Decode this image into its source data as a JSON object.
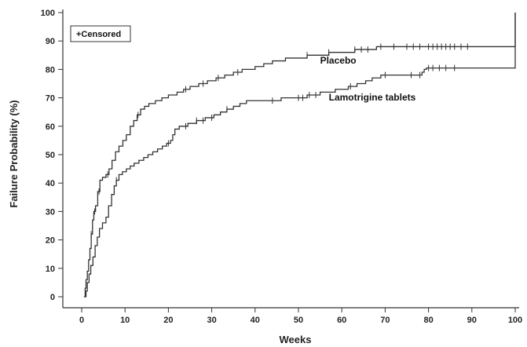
{
  "chart_data": {
    "type": "line",
    "subtype": "step (Kaplan-Meier)",
    "xlabel": "Weeks",
    "ylabel": "Failure Probability (%)",
    "xlim": [
      0,
      100
    ],
    "ylim": [
      0,
      100
    ],
    "x_ticks": [
      0,
      10,
      20,
      30,
      40,
      50,
      60,
      70,
      80,
      90,
      100
    ],
    "y_ticks": [
      0,
      10,
      20,
      30,
      40,
      50,
      60,
      70,
      80,
      90,
      100
    ],
    "grid": false,
    "legend": {
      "position": "top-left",
      "entries": [
        "+Censored"
      ]
    },
    "series": [
      {
        "name": "Placebo",
        "color": "#333333",
        "points": [
          [
            0.5,
            0
          ],
          [
            0.8,
            3
          ],
          [
            1.0,
            6
          ],
          [
            1.3,
            9
          ],
          [
            1.6,
            13
          ],
          [
            1.9,
            17
          ],
          [
            2.2,
            22
          ],
          [
            2.5,
            27
          ],
          [
            2.8,
            30
          ],
          [
            3.2,
            32
          ],
          [
            3.7,
            37
          ],
          [
            4.2,
            41
          ],
          [
            4.8,
            42
          ],
          [
            5.6,
            43
          ],
          [
            6.3,
            45
          ],
          [
            7.0,
            48
          ],
          [
            7.8,
            51
          ],
          [
            8.6,
            53
          ],
          [
            9.5,
            55
          ],
          [
            10.3,
            57
          ],
          [
            11.2,
            60
          ],
          [
            12.0,
            62
          ],
          [
            12.8,
            64
          ],
          [
            13.6,
            66
          ],
          [
            14.5,
            67
          ],
          [
            15.5,
            68
          ],
          [
            17.0,
            69
          ],
          [
            18.5,
            70
          ],
          [
            20.0,
            71
          ],
          [
            22.0,
            72
          ],
          [
            23.5,
            73
          ],
          [
            25.0,
            74
          ],
          [
            27.0,
            75
          ],
          [
            29.0,
            76
          ],
          [
            31.0,
            77
          ],
          [
            33.0,
            78
          ],
          [
            35.0,
            79
          ],
          [
            37.0,
            80
          ],
          [
            40.0,
            81
          ],
          [
            42.0,
            82
          ],
          [
            44.0,
            83
          ],
          [
            47.0,
            84
          ],
          [
            52.0,
            85
          ],
          [
            57.0,
            86
          ],
          [
            63.0,
            87
          ],
          [
            68.0,
            88
          ],
          [
            90.0,
            88
          ],
          [
            100.0,
            100
          ]
        ],
        "censored": [
          2.2,
          3.0,
          4.0,
          6.0,
          13.0,
          24.0,
          28.0,
          31.5,
          36.0,
          52.0,
          57.0,
          63.0,
          64.5,
          66.0,
          69.0,
          72.0,
          75.0,
          76.5,
          78.0,
          80.0,
          81.0,
          82.0,
          83.0,
          84.0,
          85.0,
          86.0,
          87.5,
          89.0
        ]
      },
      {
        "name": "Lamotrigine tablets",
        "color": "#333333",
        "points": [
          [
            0.7,
            0
          ],
          [
            1.0,
            2
          ],
          [
            1.3,
            5
          ],
          [
            1.7,
            8
          ],
          [
            2.1,
            11
          ],
          [
            2.6,
            14
          ],
          [
            3.1,
            18
          ],
          [
            3.6,
            21
          ],
          [
            4.1,
            24
          ],
          [
            4.8,
            26
          ],
          [
            5.6,
            28
          ],
          [
            6.2,
            32
          ],
          [
            6.9,
            36
          ],
          [
            7.5,
            39
          ],
          [
            8.0,
            41
          ],
          [
            8.6,
            43
          ],
          [
            9.4,
            44
          ],
          [
            10.3,
            45
          ],
          [
            11.2,
            46
          ],
          [
            12.1,
            47
          ],
          [
            13.2,
            48
          ],
          [
            14.3,
            49
          ],
          [
            15.3,
            50
          ],
          [
            16.4,
            51
          ],
          [
            17.5,
            52
          ],
          [
            18.6,
            53
          ],
          [
            19.6,
            54
          ],
          [
            20.5,
            55
          ],
          [
            21.0,
            57
          ],
          [
            21.5,
            59
          ],
          [
            22.5,
            60
          ],
          [
            24.5,
            61
          ],
          [
            26.5,
            62
          ],
          [
            28.5,
            63
          ],
          [
            30.5,
            64
          ],
          [
            32.0,
            65
          ],
          [
            33.5,
            66
          ],
          [
            35.0,
            67
          ],
          [
            36.5,
            68
          ],
          [
            38.0,
            69
          ],
          [
            46.0,
            70
          ],
          [
            52.0,
            71
          ],
          [
            55.0,
            72
          ],
          [
            58.5,
            73
          ],
          [
            61.5,
            74
          ],
          [
            63.5,
            75
          ],
          [
            65.5,
            76
          ],
          [
            67.0,
            77
          ],
          [
            69.0,
            78
          ],
          [
            78.5,
            79
          ],
          [
            79.0,
            80
          ],
          [
            79.5,
            80.5
          ],
          [
            99.5,
            80.5
          ],
          [
            100.0,
            100
          ]
        ],
        "censored": [
          8.0,
          20.0,
          24.0,
          26.5,
          28.0,
          30.0,
          33.5,
          44.0,
          50.0,
          51.0,
          52.5,
          54.0,
          62.0,
          70.0,
          76.0,
          78.0,
          80.0,
          81.0,
          82.5,
          84.0,
          86.0
        ]
      }
    ],
    "annotations": [
      {
        "text": "Placebo",
        "x": 55,
        "y": 82
      },
      {
        "text": "Lamotrigine tablets",
        "x": 57,
        "y": 69
      }
    ]
  }
}
